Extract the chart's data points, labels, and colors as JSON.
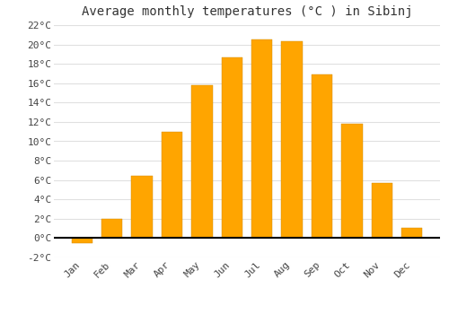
{
  "title": "Average monthly temperatures (°C ) in Sibinj",
  "months": [
    "Jan",
    "Feb",
    "Mar",
    "Apr",
    "May",
    "Jun",
    "Jul",
    "Aug",
    "Sep",
    "Oct",
    "Nov",
    "Dec"
  ],
  "values": [
    -0.5,
    2.0,
    6.4,
    11.0,
    15.8,
    18.7,
    20.5,
    20.3,
    16.9,
    11.8,
    5.7,
    1.1
  ],
  "bar_color_bottom": "#FFA500",
  "bar_color_top": "#FFD050",
  "background_color": "#ffffff",
  "grid_color": "#e0e0e0",
  "ylim": [
    -2,
    22
  ],
  "yticks": [
    -2,
    0,
    2,
    4,
    6,
    8,
    10,
    12,
    14,
    16,
    18,
    20,
    22
  ],
  "title_fontsize": 10,
  "tick_fontsize": 8,
  "figsize": [
    5.0,
    3.5
  ],
  "dpi": 100
}
